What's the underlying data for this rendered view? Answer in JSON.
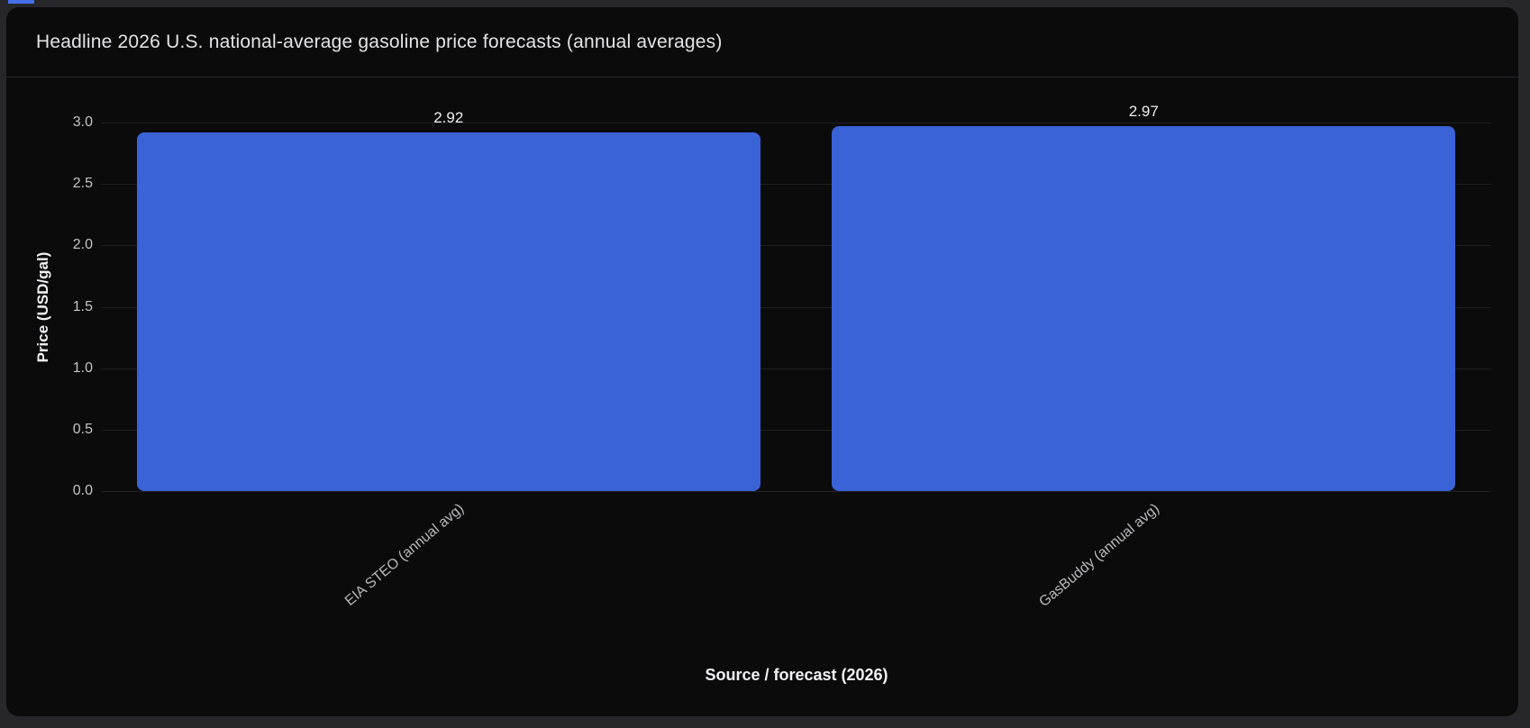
{
  "header": {
    "title": "Headline 2026 U.S. national-average gasoline price forecasts (annual averages)"
  },
  "chart_data": {
    "type": "bar",
    "title": "Headline 2026 U.S. national-average gasoline price forecasts (annual averages)",
    "categories": [
      "EIA STEO (annual avg)",
      "GasBuddy (annual avg)"
    ],
    "values": [
      2.92,
      2.97
    ],
    "bar_labels": [
      "2.92",
      "2.97"
    ],
    "xlabel": "Source / forecast (2026)",
    "ylabel": "Price (USD/gal)",
    "ylim": [
      0,
      3.0
    ],
    "ytick_labels": [
      "0.0",
      "0.5",
      "1.0",
      "1.5",
      "2.0",
      "2.5",
      "3.0"
    ],
    "grid": true,
    "legend_position": "none",
    "x_tick_rotation_deg": 40,
    "bar_color": "#3a63d8"
  },
  "colors": {
    "page_background": "#27272b",
    "card_background": "#0b0b0c",
    "bar_blue": "#3a63d8",
    "tab_fragment_blue": "#4470e8",
    "gridline": "#202024"
  }
}
